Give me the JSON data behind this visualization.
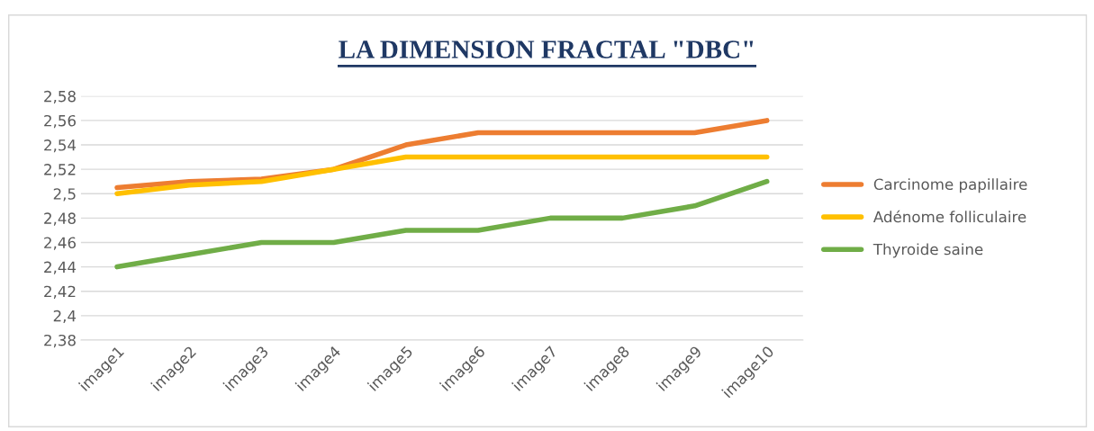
{
  "chart_data": {
    "type": "line",
    "title": "LA DIMENSION FRACTAL \"DBC\"",
    "categories": [
      "image1",
      "image2",
      "image3",
      "image4",
      "image5",
      "image6",
      "image7",
      "image8",
      "image9",
      "image10"
    ],
    "series": [
      {
        "name": "Carcinome papillaire",
        "color": "#ed7d31",
        "values": [
          2.505,
          2.51,
          2.512,
          2.52,
          2.54,
          2.55,
          2.55,
          2.55,
          2.55,
          2.56
        ]
      },
      {
        "name": "Adénome folliculaire",
        "color": "#ffc000",
        "values": [
          2.5,
          2.507,
          2.51,
          2.52,
          2.53,
          2.53,
          2.53,
          2.53,
          2.53,
          2.53
        ]
      },
      {
        "name": "Thyroide saine",
        "color": "#70ad47",
        "values": [
          2.44,
          2.45,
          2.46,
          2.46,
          2.47,
          2.47,
          2.48,
          2.48,
          2.49,
          2.51
        ]
      }
    ],
    "ylim": [
      2.38,
      2.58
    ],
    "yticks": [
      {
        "value": 2.38,
        "label": "2,38"
      },
      {
        "value": 2.4,
        "label": "2,4"
      },
      {
        "value": 2.42,
        "label": "2,42"
      },
      {
        "value": 2.44,
        "label": "2,44"
      },
      {
        "value": 2.46,
        "label": "2,46"
      },
      {
        "value": 2.48,
        "label": "2,48"
      },
      {
        "value": 2.5,
        "label": "2,5"
      },
      {
        "value": 2.52,
        "label": "2,52"
      },
      {
        "value": 2.54,
        "label": "2,54"
      },
      {
        "value": 2.56,
        "label": "2,56"
      },
      {
        "value": 2.58,
        "label": "2,58"
      }
    ],
    "grid": "y",
    "legend": "right",
    "marker": "none",
    "line_style": "solid"
  }
}
